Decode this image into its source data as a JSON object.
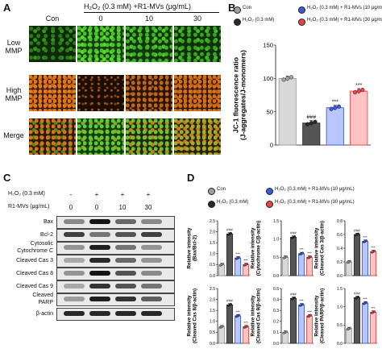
{
  "panel_A": {
    "label": "A",
    "header": "H₂O₂ (0.3 mM) +R1-MVs (μg/mL)",
    "columns": [
      "Con",
      "0",
      "10",
      "30"
    ],
    "rows": [
      "Low\nMMP",
      "High\nMMP",
      "Merge"
    ]
  },
  "panel_B": {
    "label": "B",
    "legend": [
      "Con",
      "H₂O₂ (0.3 mM)",
      "H₂O₂ (0.3 mM) + R1-MVs (10 μg/mL)",
      "H₂O₂ (0.3 mM) + R1-MVs (30 μg/mL)"
    ],
    "colors": [
      "#a0a0a0",
      "#2a2a2a",
      "#3b5bdb",
      "#e64545"
    ]
  },
  "panel_C": {
    "label": "C",
    "cond1_label": "H₂O₂ (0.3 mM)",
    "cond1_vals": [
      "-",
      "+",
      "+",
      "+"
    ],
    "cond2_label": "R1-MVs (μg/mL)",
    "cond2_vals": [
      "0",
      "0",
      "10",
      "30"
    ],
    "proteins": [
      "Bax",
      "Bcl-2",
      "Cytosolic\nCytochrome C",
      "Cleaved Cas 3",
      "Cleaved Cas 8",
      "Cleaved Cas 9",
      "Cleaved\nPARP",
      "β-actin"
    ]
  },
  "panel_D": {
    "label": "D",
    "legend": [
      "Con",
      "H₂O₂ (0.3 mM) + R1-MVs (10 μg/mL)",
      "H₂O₂ (0.3 mM)",
      "H₂O₂ (0.3 mM) + R1-MVs (30 μg/mL)"
    ]
  },
  "chart_data": [
    {
      "type": "bar",
      "panel": "B",
      "ylabel": "JC-1 fluorescence ratio\n(J-aggregates/J-monomers)",
      "ylim": [
        0,
        150
      ],
      "yticks": [
        0,
        50,
        100,
        150
      ],
      "categories": [
        "Con",
        "H2O2",
        "H2O2+R1-MVs 10",
        "H2O2+R1-MVs 30"
      ],
      "values": [
        100,
        33,
        56,
        81
      ],
      "annotations": [
        "",
        "###",
        "***",
        "***"
      ]
    },
    {
      "type": "bar",
      "panel": "D",
      "ylabel": "Relative intensity\n(Bax/Bcl-2)",
      "ylim": [
        0,
        2.5
      ],
      "yticks": [
        0.0,
        0.5,
        1.0,
        1.5,
        2.0,
        2.5
      ],
      "values": [
        0.5,
        1.9,
        0.8,
        0.5
      ],
      "annotations": [
        "",
        "###",
        "***",
        "***"
      ]
    },
    {
      "type": "bar",
      "panel": "D",
      "ylabel": "Relative intensity\n(Cytochrome C/β-actin)",
      "ylim": [
        0,
        1.5
      ],
      "yticks": [
        0.0,
        0.5,
        1.0,
        1.5
      ],
      "values": [
        0.5,
        1.05,
        0.6,
        0.5
      ],
      "annotations": [
        "",
        "###",
        "***",
        "***"
      ]
    },
    {
      "type": "bar",
      "panel": "D",
      "ylabel": "Relative intensity\n(Cleaved Cas 3/β-actin)",
      "ylim": [
        0,
        0.8
      ],
      "yticks": [
        0.0,
        0.2,
        0.4,
        0.6,
        0.8
      ],
      "values": [
        0.2,
        0.6,
        0.5,
        0.35
      ],
      "annotations": [
        "",
        "###",
        "***",
        "***"
      ]
    },
    {
      "type": "bar",
      "panel": "D",
      "ylabel": "Relative intensity\n(Cleaved Cas 8/β-actin)",
      "ylim": [
        0,
        2.5
      ],
      "yticks": [
        0.0,
        0.5,
        1.0,
        1.5,
        2.0,
        2.5
      ],
      "values": [
        0.75,
        1.75,
        1.25,
        0.75
      ],
      "annotations": [
        "",
        "###",
        "***",
        "***"
      ]
    },
    {
      "type": "bar",
      "panel": "D",
      "ylabel": "Relative intensity\n(Cleaved Cas 9/β-actin)",
      "ylim": [
        0,
        0.5
      ],
      "yticks": [
        0.0,
        0.1,
        0.2,
        0.3,
        0.4,
        0.5
      ],
      "values": [
        0.1,
        0.41,
        0.35,
        0.25
      ],
      "annotations": [
        "",
        "###",
        "***",
        "***"
      ]
    },
    {
      "type": "bar",
      "panel": "D",
      "ylabel": "Relative intensity\n(Cleaved PARP/β-actin)",
      "ylim": [
        0,
        1.5
      ],
      "yticks": [
        0.0,
        0.5,
        1.0,
        1.5
      ],
      "values": [
        0.4,
        1.25,
        1.1,
        0.85
      ],
      "annotations": [
        "",
        "###",
        "***",
        "***"
      ]
    }
  ]
}
